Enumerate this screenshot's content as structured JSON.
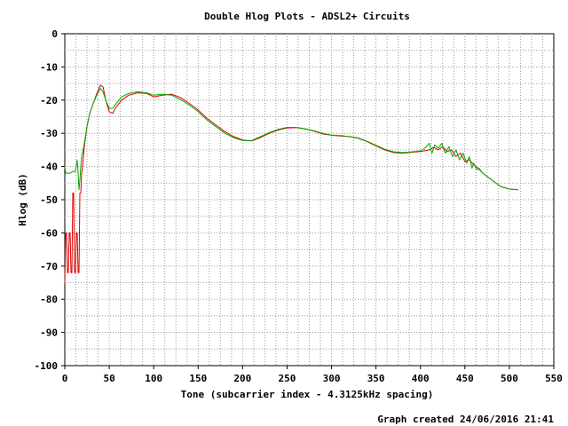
{
  "chart_data": {
    "type": "line",
    "title": "Double Hlog Plots - ADSL2+ Circuits",
    "xlabel": "Tone (subcarrier index - 4.3125kHz spacing)",
    "ylabel": "Hlog (dB)",
    "xlim": [
      0,
      550
    ],
    "ylim": [
      -100,
      0
    ],
    "x_ticks": [
      0,
      50,
      100,
      150,
      200,
      250,
      300,
      350,
      400,
      450,
      500,
      550
    ],
    "y_ticks": [
      0,
      -10,
      -20,
      -30,
      -40,
      -50,
      -60,
      -70,
      -80,
      -90,
      -100
    ],
    "grid": true,
    "footer": "Graph created 24/06/2016 21:41",
    "series": [
      {
        "color": "#dd0000",
        "points": [
          [
            0,
            -75
          ],
          [
            1,
            -60
          ],
          [
            2,
            -60
          ],
          [
            3,
            -72
          ],
          [
            4,
            -72
          ],
          [
            5,
            -60
          ],
          [
            6,
            -60
          ],
          [
            7,
            -72
          ],
          [
            8,
            -72
          ],
          [
            9,
            -48
          ],
          [
            10,
            -48
          ],
          [
            11,
            -72
          ],
          [
            12,
            -72
          ],
          [
            13,
            -60
          ],
          [
            14,
            -60
          ],
          [
            15,
            -72
          ],
          [
            16,
            -72
          ],
          [
            17,
            -48
          ],
          [
            18,
            -48
          ],
          [
            19,
            -42
          ],
          [
            20,
            -40
          ],
          [
            22,
            -34
          ],
          [
            25,
            -28
          ],
          [
            28,
            -24
          ],
          [
            32,
            -21
          ],
          [
            36,
            -18
          ],
          [
            40,
            -15.5
          ],
          [
            43,
            -16
          ],
          [
            46,
            -20
          ],
          [
            50,
            -23.5
          ],
          [
            54,
            -24
          ],
          [
            58,
            -22
          ],
          [
            64,
            -20
          ],
          [
            72,
            -18.5
          ],
          [
            82,
            -17.8
          ],
          [
            92,
            -18
          ],
          [
            100,
            -19
          ],
          [
            110,
            -18.5
          ],
          [
            120,
            -18.2
          ],
          [
            130,
            -19.2
          ],
          [
            140,
            -21
          ],
          [
            150,
            -23
          ],
          [
            160,
            -25.5
          ],
          [
            170,
            -27.5
          ],
          [
            180,
            -29.5
          ],
          [
            190,
            -31
          ],
          [
            200,
            -32
          ],
          [
            210,
            -32.3
          ],
          [
            220,
            -31.3
          ],
          [
            230,
            -30
          ],
          [
            240,
            -29
          ],
          [
            250,
            -28.4
          ],
          [
            260,
            -28.3
          ],
          [
            270,
            -28.7
          ],
          [
            280,
            -29.3
          ],
          [
            290,
            -30.2
          ],
          [
            300,
            -30.6
          ],
          [
            310,
            -30.8
          ],
          [
            320,
            -31
          ],
          [
            330,
            -31.5
          ],
          [
            340,
            -32.5
          ],
          [
            350,
            -33.8
          ],
          [
            360,
            -35
          ],
          [
            370,
            -35.8
          ],
          [
            380,
            -36
          ],
          [
            390,
            -35.7
          ],
          [
            400,
            -35.5
          ],
          [
            410,
            -35
          ],
          [
            415,
            -34.2
          ],
          [
            420,
            -35
          ],
          [
            425,
            -34
          ],
          [
            430,
            -35.5
          ],
          [
            435,
            -35
          ],
          [
            440,
            -37
          ],
          [
            445,
            -36
          ],
          [
            450,
            -38.5
          ],
          [
            455,
            -38
          ],
          [
            460,
            -39.5
          ],
          [
            465,
            -40.5
          ],
          [
            470,
            -42
          ],
          [
            480,
            -44
          ],
          [
            490,
            -46
          ],
          [
            500,
            -46.8
          ],
          [
            510,
            -47
          ]
        ]
      },
      {
        "color": "#00aa00",
        "points": [
          [
            0,
            -40
          ],
          [
            1,
            -42
          ],
          [
            3,
            -42
          ],
          [
            6,
            -42
          ],
          [
            9,
            -41.5
          ],
          [
            12,
            -41.5
          ],
          [
            14,
            -38
          ],
          [
            15,
            -42
          ],
          [
            16,
            -47
          ],
          [
            17,
            -44
          ],
          [
            18,
            -40
          ],
          [
            19,
            -37
          ],
          [
            20,
            -36
          ],
          [
            22,
            -33
          ],
          [
            25,
            -28
          ],
          [
            28,
            -24
          ],
          [
            32,
            -21
          ],
          [
            36,
            -18.5
          ],
          [
            40,
            -16.5
          ],
          [
            43,
            -17.5
          ],
          [
            46,
            -20
          ],
          [
            50,
            -22.5
          ],
          [
            54,
            -22.5
          ],
          [
            58,
            -21
          ],
          [
            64,
            -19
          ],
          [
            72,
            -18
          ],
          [
            82,
            -17.5
          ],
          [
            92,
            -17.8
          ],
          [
            100,
            -18.5
          ],
          [
            110,
            -18.2
          ],
          [
            120,
            -18.5
          ],
          [
            130,
            -19.8
          ],
          [
            140,
            -21.5
          ],
          [
            150,
            -23.5
          ],
          [
            160,
            -26
          ],
          [
            170,
            -28
          ],
          [
            180,
            -30
          ],
          [
            190,
            -31.3
          ],
          [
            200,
            -32.2
          ],
          [
            210,
            -32.2
          ],
          [
            220,
            -31
          ],
          [
            230,
            -29.8
          ],
          [
            240,
            -28.8
          ],
          [
            250,
            -28.2
          ],
          [
            260,
            -28.2
          ],
          [
            270,
            -28.6
          ],
          [
            280,
            -29.2
          ],
          [
            290,
            -30
          ],
          [
            300,
            -30.5
          ],
          [
            310,
            -30.7
          ],
          [
            320,
            -31
          ],
          [
            330,
            -31.4
          ],
          [
            340,
            -32.4
          ],
          [
            350,
            -33.6
          ],
          [
            360,
            -34.8
          ],
          [
            370,
            -35.6
          ],
          [
            380,
            -35.8
          ],
          [
            390,
            -35.6
          ],
          [
            400,
            -35.3
          ],
          [
            405,
            -34.5
          ],
          [
            410,
            -33
          ],
          [
            413,
            -36
          ],
          [
            416,
            -33.5
          ],
          [
            420,
            -34.5
          ],
          [
            424,
            -33
          ],
          [
            428,
            -36
          ],
          [
            432,
            -34
          ],
          [
            436,
            -37
          ],
          [
            440,
            -35
          ],
          [
            444,
            -38
          ],
          [
            448,
            -36
          ],
          [
            452,
            -39
          ],
          [
            455,
            -37
          ],
          [
            458,
            -40.5
          ],
          [
            460,
            -39
          ],
          [
            463,
            -41
          ],
          [
            466,
            -40.5
          ],
          [
            470,
            -42
          ],
          [
            480,
            -44
          ],
          [
            490,
            -46
          ],
          [
            500,
            -46.8
          ],
          [
            510,
            -47
          ]
        ]
      }
    ]
  }
}
